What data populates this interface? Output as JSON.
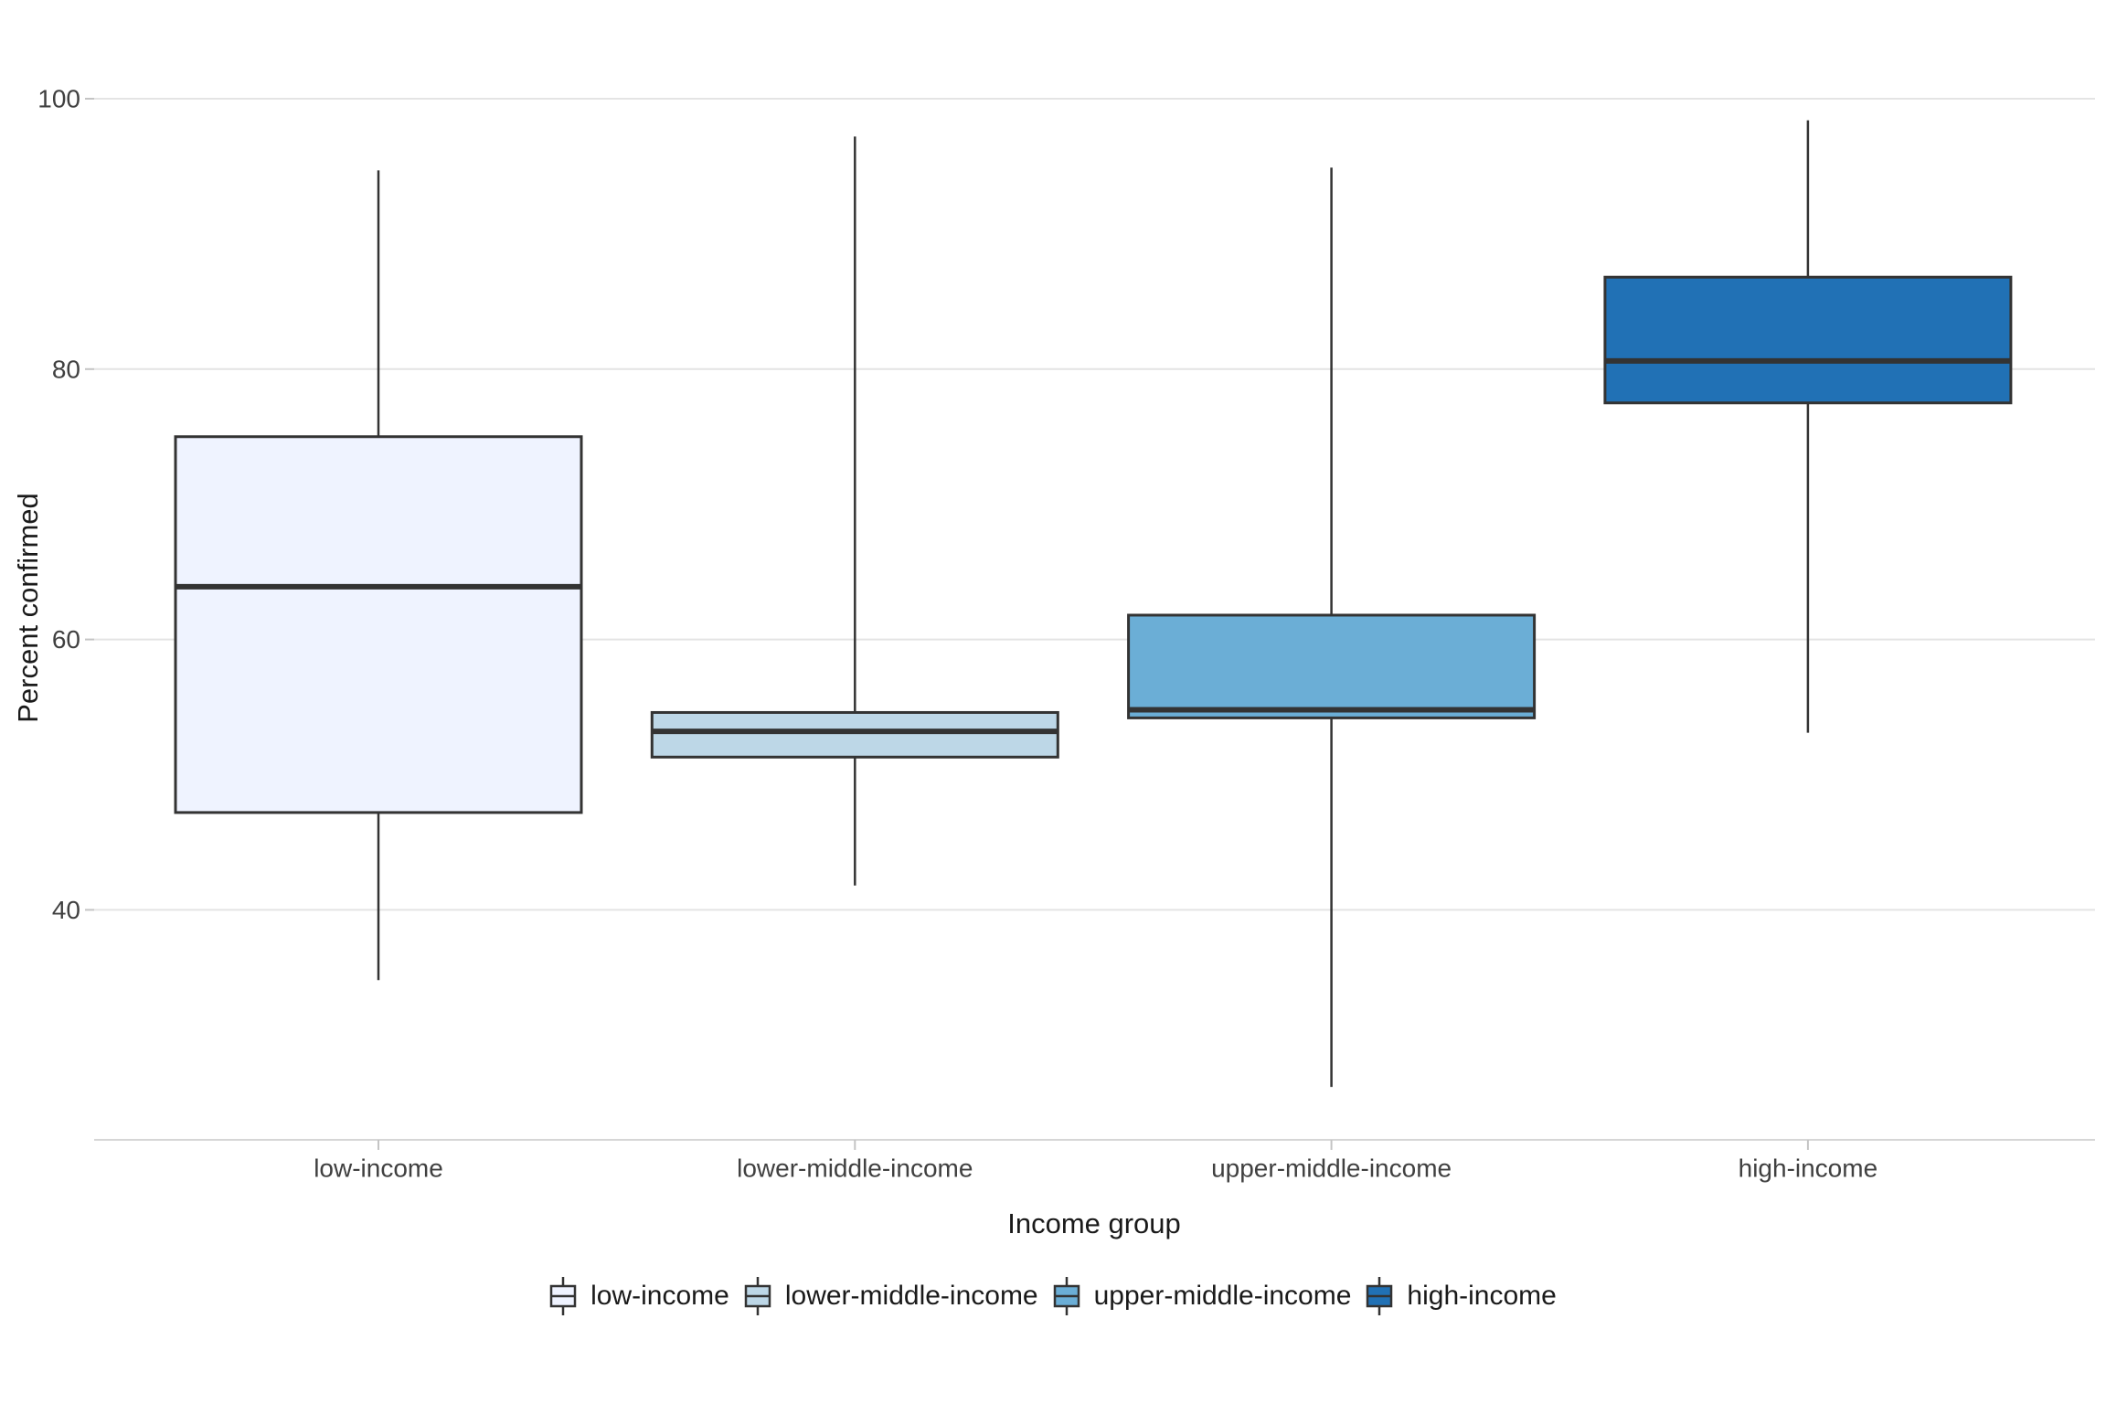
{
  "chart_data": {
    "type": "boxplot",
    "title": "",
    "xlabel": "Income group",
    "ylabel": "Percent confirmed",
    "categories": [
      "low-income",
      "lower-middle-income",
      "upper-middle-income",
      "high-income"
    ],
    "series": [
      {
        "name": "low-income",
        "whisker_low": 34.8,
        "q1": 47.2,
        "median": 63.9,
        "q3": 75.0,
        "whisker_high": 94.7,
        "color": "#EFF3FF"
      },
      {
        "name": "lower-middle-income",
        "whisker_low": 41.8,
        "q1": 51.3,
        "median": 53.2,
        "q3": 54.6,
        "whisker_high": 97.2,
        "color": "#BDD7E7"
      },
      {
        "name": "upper-middle-income",
        "whisker_low": 26.9,
        "q1": 54.2,
        "median": 54.8,
        "q3": 61.8,
        "whisker_high": 94.9,
        "color": "#6BAED6"
      },
      {
        "name": "high-income",
        "whisker_low": 53.1,
        "q1": 77.5,
        "median": 80.6,
        "q3": 86.8,
        "whisker_high": 98.4,
        "color": "#2171B5"
      }
    ],
    "y_ticks": [
      100,
      80,
      60,
      40
    ],
    "ylim_view": [
      23,
      107.3
    ],
    "grid": "horizontal-major-only",
    "legend_position": "bottom",
    "colors": {
      "box_border": "#333333",
      "median_line": "#333333",
      "gridline": "#E4E4E4",
      "axis_line": "#D6D6D6",
      "tick_mark": "#C4C4C4",
      "tick_label_text": "#404040",
      "axis_title_text": "#1A1A1A",
      "background": "#FFFFFF"
    }
  }
}
